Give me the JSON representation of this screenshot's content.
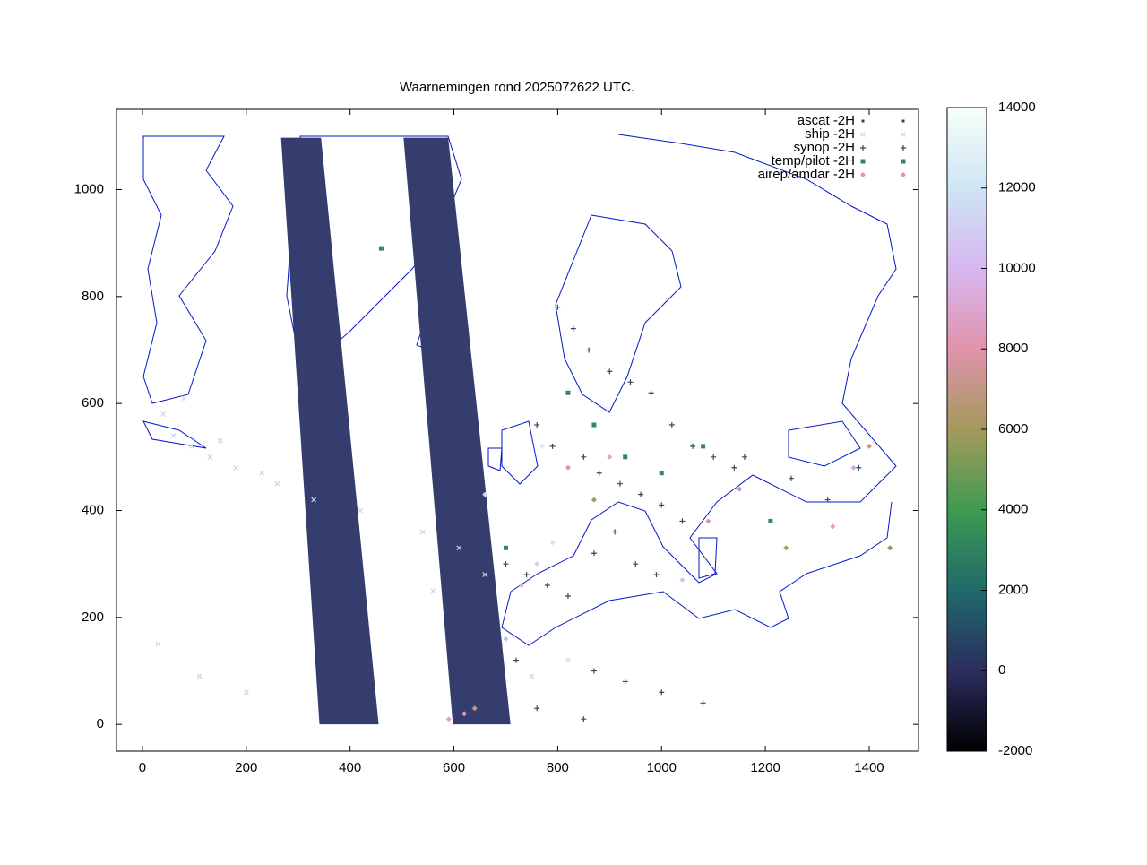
{
  "chart_data": {
    "type": "scatter",
    "title": "Waarnemingen rond 2025072622 UTC.",
    "xlim": [
      -50,
      1495
    ],
    "ylim": [
      -50,
      1150
    ],
    "xticks": [
      0,
      200,
      400,
      600,
      800,
      1000,
      1200,
      1400
    ],
    "yticks": [
      0,
      200,
      400,
      600,
      800,
      1000
    ],
    "legend": "upper right",
    "colorbar": {
      "lim": [
        -2000,
        14000
      ],
      "ticks": [
        -2000,
        0,
        2000,
        4000,
        6000,
        8000,
        10000,
        12000,
        14000
      ],
      "colors": [
        "#000000",
        "#2b2d5e",
        "#1f6a6a",
        "#3f9a52",
        "#a49a5c",
        "#e293ad",
        "#d6b6f0",
        "#cfe5f5",
        "#f6fff8"
      ]
    },
    "series": [
      {
        "name": "ascat -2H",
        "color": "#353d6e",
        "marker": "swath",
        "x": [
          267,
          344,
          455,
          341,
          null,
          503,
          589,
          709,
          598
        ],
        "y": [
          1097,
          1097,
          0,
          0,
          null,
          1097,
          1097,
          0,
          0
        ]
      },
      {
        "name": "ship -2H",
        "color": "#c9d4ea",
        "marker": "x",
        "x": [
          60,
          95,
          130,
          180,
          230,
          40,
          80,
          150,
          260,
          330,
          420,
          540,
          560,
          610,
          660,
          750,
          820,
          30,
          110,
          200
        ],
        "y": [
          540,
          520,
          500,
          480,
          470,
          580,
          610,
          530,
          450,
          420,
          400,
          360,
          250,
          330,
          280,
          90,
          120,
          150,
          90,
          60
        ]
      },
      {
        "name": "synop -2H",
        "color": "#2f4a5e",
        "marker": "+",
        "x": [
          800,
          830,
          860,
          900,
          940,
          980,
          1020,
          1060,
          1100,
          1140,
          760,
          790,
          850,
          880,
          920,
          960,
          1000,
          1040,
          700,
          740,
          780,
          820,
          870,
          910,
          950,
          990,
          650,
          690,
          720,
          870,
          930,
          1000,
          1080,
          1160,
          1250,
          1320,
          1380,
          680,
          760,
          850
        ],
        "y": [
          780,
          740,
          700,
          660,
          640,
          620,
          560,
          520,
          500,
          480,
          560,
          520,
          500,
          470,
          450,
          430,
          410,
          380,
          300,
          280,
          260,
          240,
          320,
          360,
          300,
          280,
          180,
          150,
          120,
          100,
          80,
          60,
          40,
          500,
          460,
          420,
          480,
          60,
          30,
          10
        ]
      },
      {
        "name": "temp/pilot -2H",
        "color": "#2e8b57",
        "marker": "square",
        "x": [
          460,
          820,
          870,
          930,
          1000,
          700,
          1080,
          1210
        ],
        "y": [
          890,
          620,
          560,
          500,
          470,
          330,
          520,
          380
        ]
      },
      {
        "name": "airep/amdar -2H",
        "color": "#e293ad",
        "marker": "diamond",
        "x": [
          590,
          620,
          640,
          730,
          760,
          790,
          820,
          870,
          900,
          1040,
          1090,
          1150,
          1240,
          1330,
          1370,
          1400,
          1440,
          700,
          770,
          660
        ],
        "y": [
          10,
          20,
          30,
          260,
          300,
          340,
          480,
          420,
          500,
          270,
          380,
          440,
          330,
          370,
          480,
          520,
          330,
          160,
          520,
          430
        ],
        "values": [
          9000,
          8500,
          7000,
          9500,
          11000,
          12000,
          8000,
          6000,
          9000,
          10500,
          8000,
          7500,
          6500,
          8500,
          9000,
          7000,
          5500,
          10000,
          12500,
          11500
        ]
      }
    ]
  }
}
